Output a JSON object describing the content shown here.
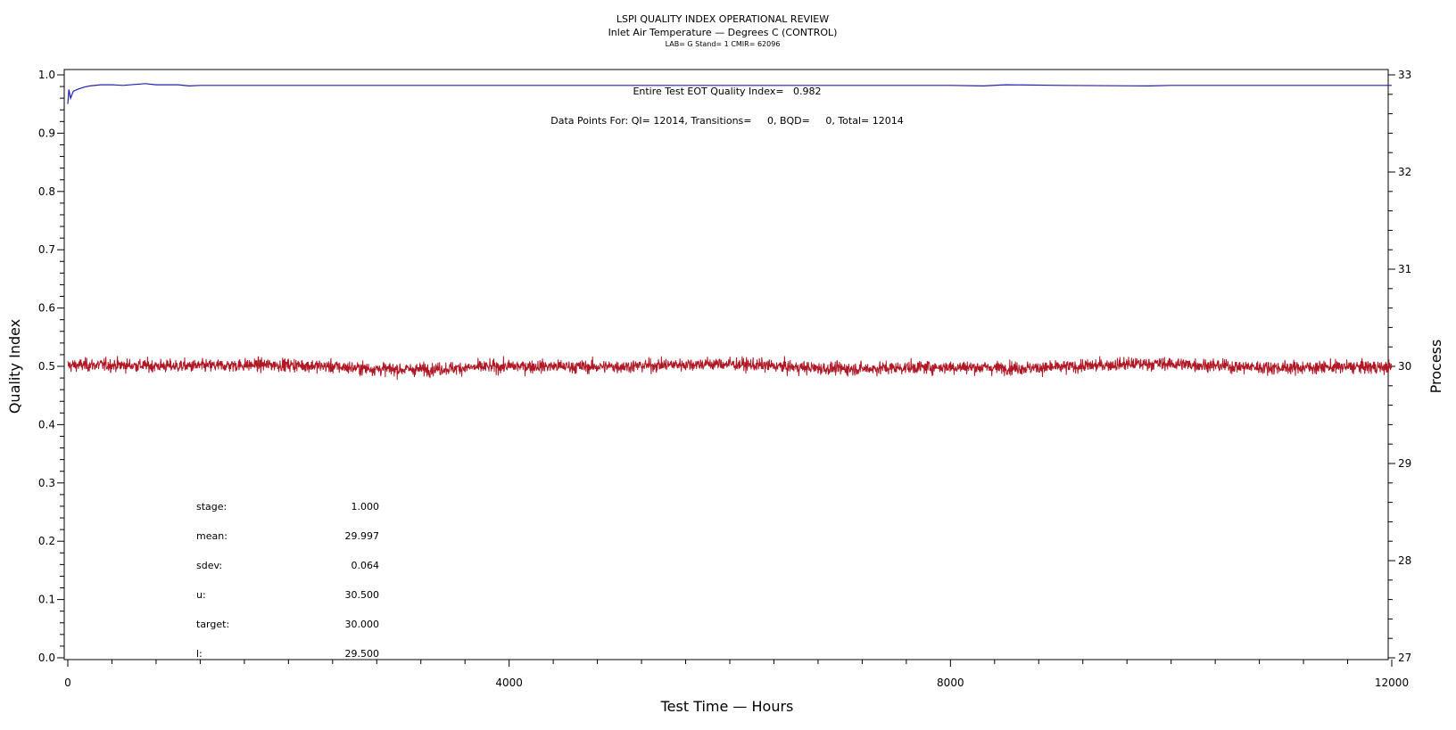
{
  "chart_data": {
    "type": "line",
    "title": "LSPI QUALITY INDEX OPERATIONAL REVIEW",
    "subtitle": "Inlet Air Temperature — Degrees C (CONTROL)",
    "caption": "LAB= G Stand= 1 CMIR= 62096",
    "xlabel": "Test Time — Hours",
    "ylabel": "Quality Index",
    "y2label": "Process",
    "xlim": [
      0,
      12000
    ],
    "ylim": [
      0,
      1
    ],
    "y2lim": [
      27,
      33
    ],
    "x_ticks": [
      "0",
      "4000",
      "8000",
      "12000"
    ],
    "y_ticks": [
      "0.0",
      "0.1",
      "0.2",
      "0.3",
      "0.4",
      "0.5",
      "0.6",
      "0.7",
      "0.8",
      "0.9",
      "1.0"
    ],
    "y2_ticks": [
      "27",
      "28",
      "29",
      "30",
      "31",
      "32",
      "33"
    ],
    "grid": false,
    "annotations": {
      "eot": "Entire Test EOT Quality Index=   0.982",
      "points": "Data Points For: QI= 12014, Transitions=     0, BQD=     0, Total= 12014"
    },
    "stats": [
      {
        "label": "stage:",
        "value": "1.000"
      },
      {
        "label": "mean:",
        "value": "29.997"
      },
      {
        "label": "sdev:",
        "value": "0.064"
      },
      {
        "label": "u:",
        "value": "30.500"
      },
      {
        "label": "target:",
        "value": "30.000"
      },
      {
        "label": "l:",
        "value": "29.500"
      }
    ],
    "series": [
      {
        "axis": "left",
        "color": "#1f1fb4",
        "x": [
          0,
          10,
          25,
          50,
          100,
          150,
          200,
          300,
          400,
          500,
          700,
          800,
          1000,
          1100,
          1200,
          1500,
          2000,
          3000,
          4000,
          5000,
          6000,
          7000,
          8000,
          8300,
          8500,
          9000,
          9800,
          10000,
          11000,
          12000
        ],
        "values": [
          0.95,
          0.975,
          0.96,
          0.972,
          0.976,
          0.979,
          0.981,
          0.983,
          0.983,
          0.982,
          0.985,
          0.983,
          0.983,
          0.981,
          0.982,
          0.982,
          0.982,
          0.982,
          0.982,
          0.982,
          0.982,
          0.982,
          0.982,
          0.981,
          0.983,
          0.982,
          0.981,
          0.982,
          0.982,
          0.982
        ]
      },
      {
        "axis": "right",
        "color": "#b01826",
        "points": 12014,
        "mean": 29.997,
        "sdev": 0.064,
        "upper": 30.5,
        "target": 30.0,
        "lower": 29.5
      }
    ]
  }
}
